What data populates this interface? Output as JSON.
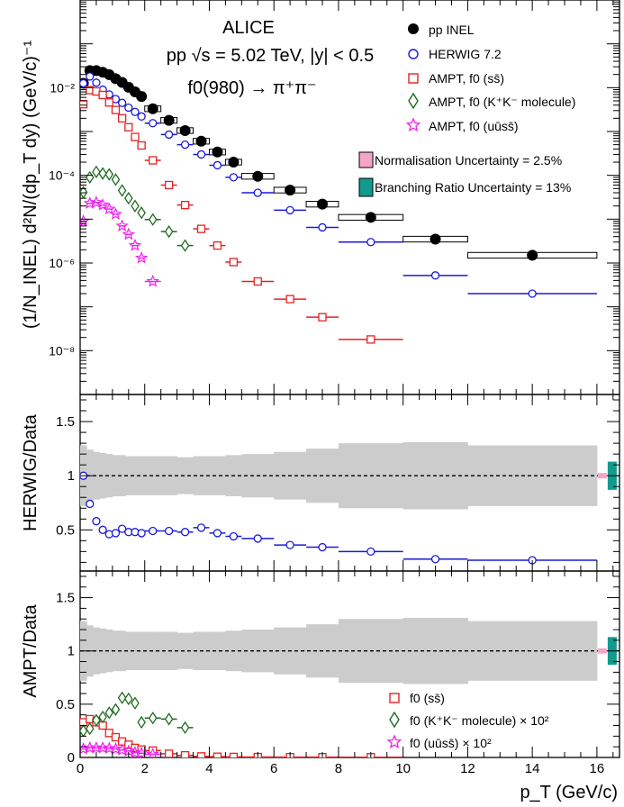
{
  "chart_data": [
    {
      "type": "scatter",
      "panel": "spectrum",
      "log_scale_y": true,
      "xlim": [
        0,
        16.7
      ],
      "ylim": [
        1e-09,
        1
      ],
      "ylabel": "(1/N_INEL) d²N/(dp_T dy) (GeV/c)⁻¹",
      "ytick_labels": [
        "10⁻²",
        "10⁻⁴",
        "10⁻⁶",
        "10⁻⁸"
      ],
      "header": [
        "ALICE",
        "pp √s = 5.02 TeV, |y| < 0.5",
        "f0(980) → π⁺π⁻"
      ],
      "legend": [
        "pp INEL",
        "HERWIG 7.2",
        "AMPT, f0 (ss̄)",
        "AMPT, f0 (K⁺K⁻ molecule)",
        "AMPT, f0 (uūss̄)"
      ],
      "uncertainty_labels": [
        "Normalisation Uncertainty = 2.5%",
        "Branching Ratio Uncertainty = 13%"
      ],
      "colors": {
        "data": "#000000",
        "herwig": "#1a1ad9",
        "ampt_ss": "#e52222",
        "ampt_kk": "#1f6b1f",
        "ampt_uuss": "#ee22ee",
        "norm": "#f4a6c8",
        "br": "#129a8e",
        "band": "#cccccc"
      },
      "series": [
        {
          "name": "pp INEL",
          "x": [
            0.1,
            0.3,
            0.5,
            0.7,
            0.9,
            1.1,
            1.3,
            1.5,
            1.7,
            1.9,
            2.25,
            2.75,
            3.25,
            3.75,
            4.25,
            4.75,
            5.5,
            6.5,
            7.5,
            9.0,
            11.0,
            14.0
          ],
          "xerr": [
            0.1,
            0.1,
            0.1,
            0.1,
            0.1,
            0.1,
            0.1,
            0.1,
            0.1,
            0.1,
            0.25,
            0.25,
            0.25,
            0.25,
            0.25,
            0.25,
            0.5,
            0.5,
            0.5,
            1.0,
            1.0,
            2.0
          ],
          "y": [
            0.0126,
            0.0245,
            0.0245,
            0.0225,
            0.0198,
            0.016,
            0.0132,
            0.0102,
            0.008,
            0.0063,
            0.0033,
            0.0018,
            0.00105,
            0.0006,
            0.00034,
            0.0002,
            9.5e-05,
            4.6e-05,
            2.2e-05,
            1.1e-05,
            3.5e-06,
            1.5e-06
          ]
        },
        {
          "name": "HERWIG 7.2",
          "x": [
            0.1,
            0.3,
            0.5,
            0.7,
            0.9,
            1.1,
            1.3,
            1.5,
            1.7,
            1.9,
            2.25,
            2.75,
            3.25,
            3.75,
            4.25,
            4.75,
            5.5,
            6.5,
            7.5,
            9.0,
            11.0,
            14.0
          ],
          "xerr": [
            0.1,
            0.1,
            0.1,
            0.1,
            0.1,
            0.1,
            0.1,
            0.1,
            0.1,
            0.1,
            0.25,
            0.25,
            0.25,
            0.25,
            0.25,
            0.25,
            0.5,
            0.5,
            0.5,
            1.0,
            1.0,
            2.0
          ],
          "y": [
            0.0126,
            0.018,
            0.013,
            0.009,
            0.007,
            0.0055,
            0.0045,
            0.0035,
            0.0028,
            0.0022,
            0.00155,
            0.00085,
            0.0005,
            0.0003,
            0.00017,
            9e-05,
            4e-05,
            1.6e-05,
            6.5e-06,
            3e-06,
            5.2e-07,
            2e-07
          ]
        },
        {
          "name": "AMPT, f0 (ss̄)",
          "x": [
            0.1,
            0.3,
            0.5,
            0.7,
            0.9,
            1.1,
            1.3,
            1.5,
            1.7,
            1.9,
            2.25,
            2.75,
            3.25,
            3.75,
            4.25,
            4.75,
            5.5,
            6.5,
            7.5,
            9.0
          ],
          "xerr": [
            0.1,
            0.1,
            0.1,
            0.1,
            0.1,
            0.1,
            0.1,
            0.1,
            0.1,
            0.1,
            0.25,
            0.25,
            0.25,
            0.25,
            0.25,
            0.25,
            0.5,
            0.5,
            0.5,
            1.0
          ],
          "y": [
            0.0042,
            0.0088,
            0.0082,
            0.0068,
            0.0046,
            0.0031,
            0.002,
            0.00125,
            0.00075,
            0.00048,
            0.00022,
            6e-05,
            2.1e-05,
            6e-06,
            2.5e-06,
            1.05e-06,
            3.8e-07,
            1.5e-07,
            5.8e-08,
            1.8e-08
          ]
        },
        {
          "name": "AMPT, f0 (K⁺K⁻ molecule)",
          "x": [
            0.1,
            0.3,
            0.5,
            0.7,
            0.9,
            1.1,
            1.3,
            1.5,
            1.7,
            1.9,
            2.25,
            2.75,
            3.25
          ],
          "xerr": [
            0.1,
            0.1,
            0.1,
            0.1,
            0.1,
            0.1,
            0.1,
            0.1,
            0.1,
            0.1,
            0.25,
            0.25,
            0.25
          ],
          "y": [
            4.1e-05,
            9e-05,
            0.00012,
            0.00011,
            0.000105,
            8e-05,
            4.5e-05,
            3e-05,
            2e-05,
            1.4e-05,
            9.8e-06,
            5.2e-06,
            2.5e-06
          ]
        },
        {
          "name": "AMPT, f0 (uūss̄)",
          "x": [
            0.1,
            0.3,
            0.5,
            0.7,
            0.9,
            1.1,
            1.3,
            1.5,
            1.7,
            1.9,
            2.25
          ],
          "xerr": [
            0.1,
            0.1,
            0.1,
            0.1,
            0.1,
            0.1,
            0.1,
            0.1,
            0.1,
            0.1,
            0.25
          ],
          "y": [
            9e-06,
            2.3e-05,
            2.4e-05,
            2.1e-05,
            1.7e-05,
            1.3e-05,
            7e-06,
            4.5e-06,
            2.5e-06,
            1.3e-06,
            3.8e-07
          ]
        }
      ]
    },
    {
      "type": "scatter",
      "panel": "herwig-ratio",
      "ylabel": "HERWIG/Data",
      "xlim": [
        0,
        16.7
      ],
      "ylim": [
        0.12,
        1.75
      ],
      "ytick_labels": [
        "0.5",
        "1",
        "1.5"
      ],
      "band_x": [
        0.1,
        0.3,
        0.5,
        0.7,
        0.9,
        1.1,
        1.3,
        1.5,
        1.7,
        1.9,
        2.25,
        2.75,
        3.25,
        3.75,
        4.25,
        4.75,
        5.5,
        6.5,
        7.5,
        9.0,
        11.0,
        14.0
      ],
      "band_xerr": [
        0.1,
        0.1,
        0.1,
        0.1,
        0.1,
        0.1,
        0.1,
        0.1,
        0.1,
        0.1,
        0.25,
        0.25,
        0.25,
        0.25,
        0.25,
        0.25,
        0.5,
        0.5,
        0.5,
        1.0,
        1.0,
        2.0
      ],
      "band_err": [
        0.28,
        0.24,
        0.22,
        0.21,
        0.2,
        0.19,
        0.19,
        0.18,
        0.18,
        0.18,
        0.18,
        0.18,
        0.17,
        0.18,
        0.18,
        0.19,
        0.2,
        0.22,
        0.25,
        0.3,
        0.31,
        0.28
      ],
      "series": [
        {
          "name": "HERWIG 7.2",
          "x": [
            0.1,
            0.3,
            0.5,
            0.7,
            0.9,
            1.1,
            1.3,
            1.5,
            1.7,
            1.9,
            2.25,
            2.75,
            3.25,
            3.75,
            4.25,
            4.75,
            5.5,
            6.5,
            7.5,
            9.0,
            11.0,
            14.0
          ],
          "xerr": [
            0.1,
            0.1,
            0.1,
            0.1,
            0.1,
            0.1,
            0.1,
            0.1,
            0.1,
            0.1,
            0.25,
            0.25,
            0.25,
            0.25,
            0.25,
            0.25,
            0.5,
            0.5,
            0.5,
            1.0,
            1.0,
            2.0
          ],
          "y": [
            1.0,
            0.74,
            0.58,
            0.5,
            0.46,
            0.47,
            0.51,
            0.48,
            0.48,
            0.47,
            0.49,
            0.49,
            0.48,
            0.52,
            0.47,
            0.44,
            0.42,
            0.36,
            0.34,
            0.3,
            0.23,
            0.22
          ]
        }
      ]
    },
    {
      "type": "scatter",
      "panel": "ampt-ratio",
      "ylabel": "AMPT/Data",
      "xlabel": "p_T (GeV/c)",
      "xlim": [
        0,
        16.7
      ],
      "ylim": [
        0,
        1.75
      ],
      "xtick_labels": [
        "0",
        "2",
        "4",
        "6",
        "8",
        "10",
        "12",
        "14",
        "16"
      ],
      "ytick_labels": [
        "0",
        "0.5",
        "1",
        "1.5"
      ],
      "legend": [
        "f0 (ss̄)",
        "f0 (K⁺K⁻ molecule) × 10²",
        "f0 (uūss̄) × 10²"
      ],
      "series": [
        {
          "name": "f0 (ss̄)",
          "x": [
            0.1,
            0.3,
            0.5,
            0.7,
            0.9,
            1.1,
            1.3,
            1.5,
            1.7,
            1.9,
            2.25,
            2.75,
            3.25,
            3.75,
            4.25,
            4.75,
            5.5,
            6.5,
            7.5,
            9.0
          ],
          "xerr": [
            0.1,
            0.1,
            0.1,
            0.1,
            0.1,
            0.1,
            0.1,
            0.1,
            0.1,
            0.1,
            0.25,
            0.25,
            0.25,
            0.25,
            0.25,
            0.25,
            0.5,
            0.5,
            0.5,
            1.0
          ],
          "y": [
            0.33,
            0.36,
            0.33,
            0.3,
            0.23,
            0.19,
            0.15,
            0.12,
            0.09,
            0.075,
            0.065,
            0.035,
            0.02,
            0.01,
            0.007,
            0.005,
            0.004,
            0.003,
            0.003,
            0.002
          ]
        },
        {
          "name": "f0 (K⁺K⁻ molecule) × 10²",
          "x": [
            0.1,
            0.3,
            0.5,
            0.7,
            0.9,
            1.1,
            1.3,
            1.5,
            1.7,
            1.9,
            2.25,
            2.75,
            3.25
          ],
          "xerr": [
            0.1,
            0.1,
            0.1,
            0.1,
            0.1,
            0.1,
            0.1,
            0.1,
            0.1,
            0.1,
            0.25,
            0.25,
            0.25
          ],
          "y": [
            0.25,
            0.27,
            0.35,
            0.38,
            0.42,
            0.45,
            0.56,
            0.55,
            0.51,
            0.33,
            0.37,
            0.36,
            0.28
          ]
        },
        {
          "name": "f0 (uūss̄) × 10²",
          "x": [
            0.1,
            0.3,
            0.5,
            0.7,
            0.9,
            1.1,
            1.3,
            1.5,
            1.7,
            1.9,
            2.25
          ],
          "xerr": [
            0.1,
            0.1,
            0.1,
            0.1,
            0.1,
            0.1,
            0.1,
            0.1,
            0.1,
            0.1,
            0.25
          ],
          "y": [
            0.08,
            0.09,
            0.09,
            0.09,
            0.085,
            0.08,
            0.07,
            0.06,
            0.045,
            0.04,
            0.03
          ]
        }
      ]
    }
  ]
}
